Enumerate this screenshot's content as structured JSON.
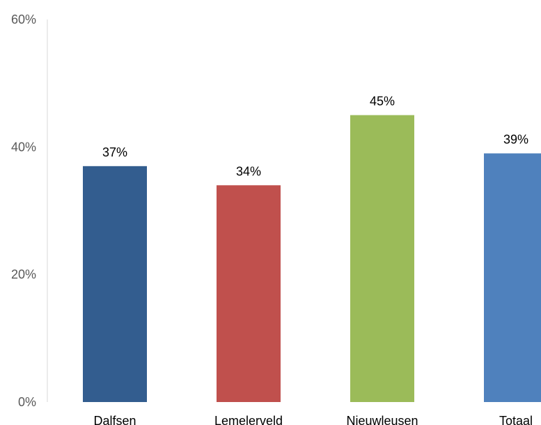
{
  "chart_data": {
    "type": "bar",
    "categories": [
      "Dalfsen",
      "Lemelerveld",
      "Nieuwleusen",
      "Totaal"
    ],
    "values": [
      37,
      34,
      45,
      39
    ],
    "value_labels": [
      "37%",
      "34%",
      "45%",
      "39%"
    ],
    "colors": [
      "#335d8f",
      "#c0504d",
      "#9bbb59",
      "#4f81bd"
    ],
    "ylim": [
      0,
      60
    ],
    "yticks": [
      {
        "value": 0,
        "label": "0%"
      },
      {
        "value": 20,
        "label": "20%"
      },
      {
        "value": 40,
        "label": "40%"
      },
      {
        "value": 60,
        "label": "60%"
      }
    ],
    "grid": false,
    "legend": "none",
    "title": "",
    "xlabel": "",
    "ylabel": ""
  }
}
